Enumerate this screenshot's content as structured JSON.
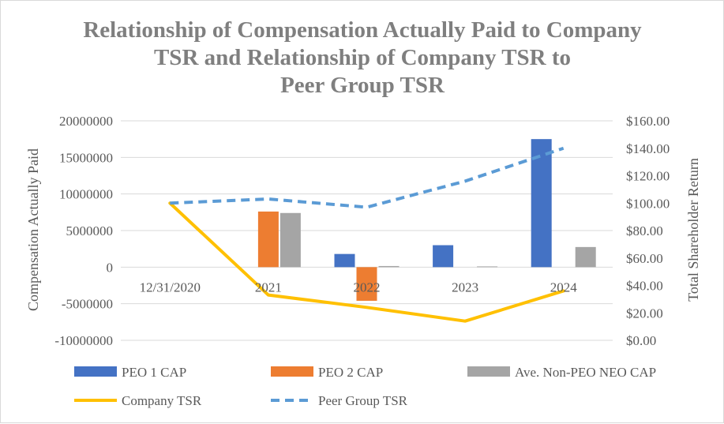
{
  "chart_data": {
    "type": "bar",
    "title_lines": [
      "Relationship of Compensation Actually Paid to Company",
      "TSR and Relationship of Company TSR to",
      "Peer Group TSR"
    ],
    "categories": [
      "12/31/2020",
      "2021",
      "2022",
      "2023",
      "2024"
    ],
    "ylabel": "Compensation Actually Paid",
    "y2label": "Total Shareholder Return",
    "ylim": [
      -10000000,
      20000000
    ],
    "y_ticks": [
      20000000,
      15000000,
      10000000,
      5000000,
      0,
      -5000000,
      -10000000
    ],
    "y_tick_labels": [
      "20000000",
      "15000000",
      "10000000",
      "5000000",
      "0",
      "-5000000",
      "-10000000"
    ],
    "y2lim": [
      0,
      160
    ],
    "y2_ticks": [
      160,
      140,
      120,
      100,
      80,
      60,
      40,
      20,
      0
    ],
    "y2_tick_labels": [
      "$160.00",
      "$140.00",
      "$120.00",
      "$100.00",
      "$80.00",
      "$60.00",
      "$40.00",
      "$20.00",
      "$0.00"
    ],
    "grid": true,
    "legend_position": "bottom",
    "bar_series": [
      {
        "name": "PEO 1 CAP",
        "color": "#4472c4",
        "values": [
          null,
          null,
          1800000,
          3000000,
          17500000
        ]
      },
      {
        "name": "PEO 2 CAP",
        "color": "#ed7d31",
        "values": [
          null,
          7600000,
          -4600000,
          null,
          null
        ]
      },
      {
        "name": "Ave. Non-PEO NEO CAP",
        "color": "#a5a5a5",
        "values": [
          null,
          7400000,
          150000,
          100000,
          2750000
        ]
      }
    ],
    "line_series": [
      {
        "name": "Company TSR",
        "color": "#ffc000",
        "style": "solid",
        "axis": "secondary",
        "values": [
          100,
          33,
          24,
          14,
          36
        ]
      },
      {
        "name": "Peer Group TSR",
        "color": "#5b9bd5",
        "style": "dashed",
        "axis": "secondary",
        "values": [
          100,
          103,
          97,
          116,
          140
        ]
      }
    ]
  }
}
